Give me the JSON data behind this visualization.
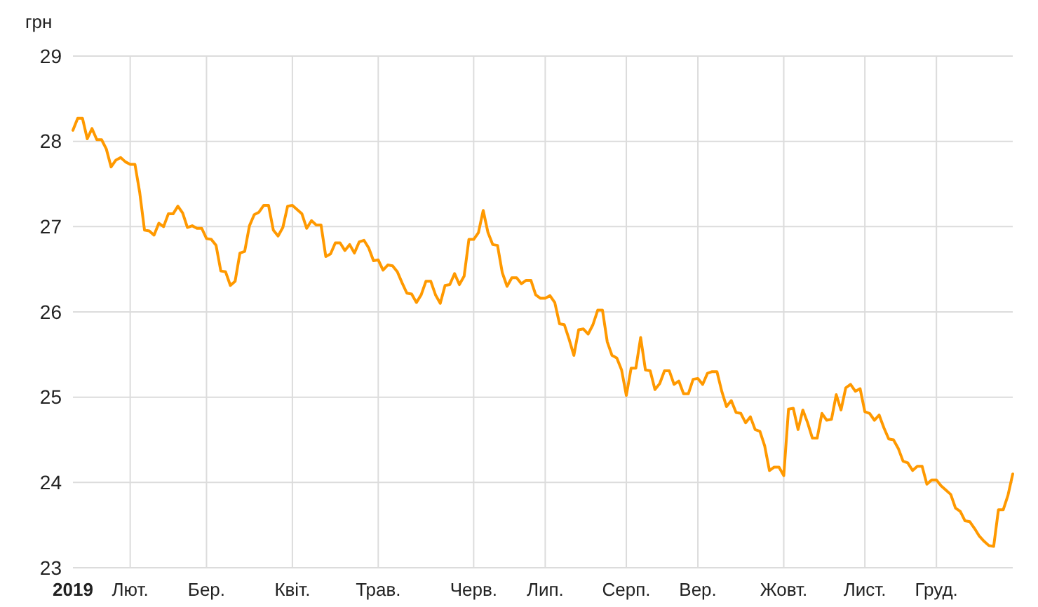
{
  "chart_data": {
    "type": "line",
    "ylabel": "грн",
    "grid": true,
    "categories": [
      "2019",
      null,
      null,
      null,
      null,
      null,
      null,
      null,
      null,
      null,
      null,
      null,
      "Лют.",
      null,
      null,
      null,
      null,
      null,
      null,
      null,
      null,
      null,
      null,
      null,
      null,
      null,
      null,
      null,
      "Бер.",
      null,
      null,
      null,
      null,
      null,
      null,
      null,
      null,
      null,
      null,
      null,
      null,
      null,
      null,
      null,
      null,
      null,
      "Квіт.",
      null,
      null,
      null,
      null,
      null,
      null,
      null,
      null,
      null,
      null,
      null,
      null,
      null,
      null,
      null,
      null,
      null,
      "Трав.",
      null,
      null,
      null,
      null,
      null,
      null,
      null,
      null,
      null,
      null,
      null,
      null,
      null,
      null,
      null,
      null,
      null,
      null,
      null,
      "Черв.",
      null,
      null,
      null,
      null,
      null,
      null,
      null,
      null,
      null,
      null,
      null,
      null,
      null,
      null,
      "Лип.",
      null,
      null,
      null,
      null,
      null,
      null,
      null,
      null,
      null,
      null,
      null,
      null,
      null,
      null,
      null,
      null,
      "Серп.",
      null,
      null,
      null,
      null,
      null,
      null,
      null,
      null,
      null,
      null,
      null,
      null,
      null,
      null,
      "Вер.",
      null,
      null,
      null,
      null,
      null,
      null,
      null,
      null,
      null,
      null,
      null,
      null,
      null,
      null,
      null,
      null,
      null,
      "Жовт.",
      null,
      null,
      null,
      null,
      null,
      null,
      null,
      null,
      null,
      null,
      null,
      null,
      null,
      null,
      null,
      null,
      "Лист.",
      null,
      null,
      null,
      null,
      null,
      null,
      null,
      null,
      null,
      null,
      null,
      null,
      null,
      null,
      "Груд.",
      null,
      null,
      null,
      null,
      null,
      null,
      null,
      null,
      null,
      null,
      null,
      null,
      null,
      null,
      null,
      null
    ],
    "ylim": [
      23,
      29
    ],
    "yticks": [
      23,
      24,
      25,
      26,
      27,
      28,
      29
    ],
    "series": [
      {
        "color": "#ff9900",
        "values": [
          28.13,
          28.27,
          28.27,
          28.03,
          28.15,
          28.02,
          28.02,
          27.91,
          27.7,
          27.78,
          27.81,
          27.76,
          27.73,
          27.73,
          27.4,
          26.96,
          26.95,
          26.9,
          27.04,
          27.0,
          27.15,
          27.15,
          27.24,
          27.16,
          26.99,
          27.01,
          26.98,
          26.98,
          26.86,
          26.85,
          26.78,
          26.48,
          26.47,
          26.31,
          26.36,
          26.69,
          26.71,
          27.01,
          27.14,
          27.17,
          27.25,
          27.25,
          26.96,
          26.89,
          26.99,
          27.24,
          27.25,
          27.2,
          27.15,
          26.98,
          27.07,
          27.02,
          27.02,
          26.65,
          26.68,
          26.81,
          26.81,
          26.72,
          26.79,
          26.69,
          26.82,
          26.84,
          26.75,
          26.6,
          26.61,
          26.49,
          26.55,
          26.54,
          26.47,
          26.34,
          26.22,
          26.21,
          26.11,
          26.2,
          26.36,
          26.36,
          26.2,
          26.1,
          26.31,
          26.32,
          26.45,
          26.32,
          26.42,
          26.85,
          26.85,
          26.93,
          27.19,
          26.93,
          26.79,
          26.78,
          26.46,
          26.3,
          26.4,
          26.4,
          26.33,
          26.37,
          26.37,
          26.2,
          26.16,
          26.16,
          26.19,
          26.11,
          25.86,
          25.85,
          25.68,
          25.49,
          25.79,
          25.8,
          25.74,
          25.85,
          26.02,
          26.02,
          25.65,
          25.49,
          25.46,
          25.32,
          25.02,
          25.34,
          25.34,
          25.7,
          25.32,
          25.31,
          25.09,
          25.16,
          25.31,
          25.31,
          25.15,
          25.19,
          25.04,
          25.04,
          25.21,
          25.22,
          25.15,
          25.28,
          25.3,
          25.3,
          25.07,
          24.89,
          24.96,
          24.82,
          24.81,
          24.7,
          24.77,
          24.62,
          24.6,
          24.43,
          24.14,
          24.18,
          24.18,
          24.08,
          24.86,
          24.87,
          24.62,
          24.85,
          24.7,
          24.52,
          24.52,
          24.81,
          24.73,
          24.74,
          25.03,
          24.85,
          25.11,
          25.15,
          25.07,
          25.1,
          24.83,
          24.81,
          24.73,
          24.79,
          24.64,
          24.51,
          24.5,
          24.4,
          24.25,
          24.23,
          24.14,
          24.19,
          24.19,
          23.98,
          24.03,
          24.03,
          23.96,
          23.91,
          23.86,
          23.7,
          23.66,
          23.55,
          23.54,
          23.46,
          23.37,
          23.31,
          23.26,
          23.25,
          23.68,
          23.68,
          23.85,
          24.1
        ]
      }
    ]
  }
}
